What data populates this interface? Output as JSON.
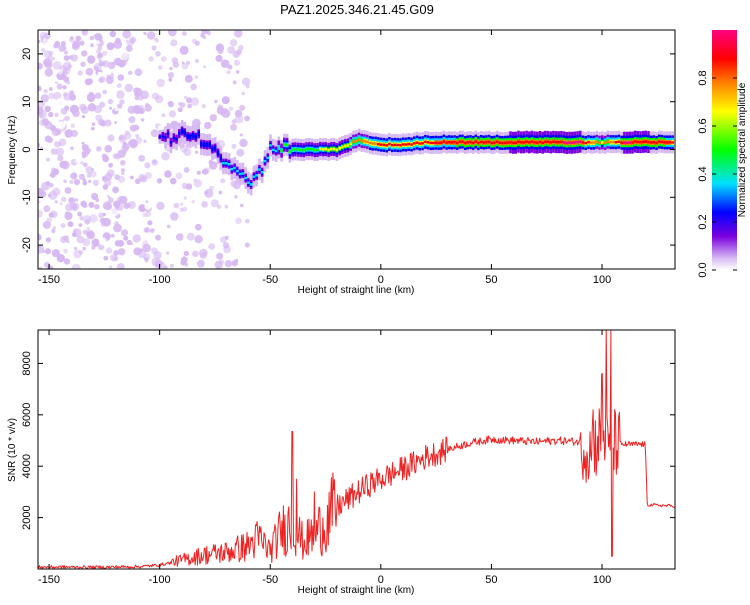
{
  "title": "PAZ1.2025.346.21.45.G09",
  "spectrogram": {
    "type": "heatmap",
    "xlabel": "Height of straight line (km)",
    "ylabel": "Frequency (Hz)",
    "xlim": [
      -155,
      133
    ],
    "ylim": [
      -25,
      25
    ],
    "xticks": [
      -150,
      -100,
      -50,
      0,
      50,
      100
    ],
    "yticks": [
      -20,
      -10,
      0,
      10,
      20
    ],
    "colorbar": {
      "label": "Normalized spectral amplitude",
      "range": [
        0,
        1
      ],
      "ticks": [
        "0.0",
        "0.2",
        "0.4",
        "0.6",
        "0.8"
      ],
      "tick_values": [
        0,
        0.2,
        0.4,
        0.6,
        0.8
      ],
      "colormap": [
        "#ffffff",
        "#d6b8f2",
        "#7b00e0",
        "#0000ff",
        "#00e0ff",
        "#00ff00",
        "#ffff00",
        "#ff8000",
        "#ff0000",
        "#ff0080"
      ]
    },
    "scatter_region": {
      "x_range": [
        -155,
        -60
      ],
      "amplitude": "low"
    },
    "ridge": [
      {
        "x": -100,
        "y": 2,
        "amp": 0.3
      },
      {
        "x": -90,
        "y": 3,
        "amp": 0.35
      },
      {
        "x": -80,
        "y": 2,
        "amp": 0.35
      },
      {
        "x": -70,
        "y": -3,
        "amp": 0.4
      },
      {
        "x": -60,
        "y": -7,
        "amp": 0.45
      },
      {
        "x": -55,
        "y": -5,
        "amp": 0.4
      },
      {
        "x": -50,
        "y": 0,
        "amp": 0.45
      },
      {
        "x": -40,
        "y": 0,
        "amp": 0.55
      },
      {
        "x": -30,
        "y": 0,
        "amp": 0.6
      },
      {
        "x": -20,
        "y": 0,
        "amp": 0.65
      },
      {
        "x": -10,
        "y": 2,
        "amp": 0.75
      },
      {
        "x": 0,
        "y": 1,
        "amp": 0.85
      },
      {
        "x": 10,
        "y": 1,
        "amp": 0.85
      },
      {
        "x": 20,
        "y": 1.5,
        "amp": 0.9
      },
      {
        "x": 50,
        "y": 1.5,
        "amp": 0.92
      },
      {
        "x": 90,
        "y": 1.5,
        "amp": 0.95
      },
      {
        "x": 100,
        "y": 1.5,
        "amp": 0.7
      },
      {
        "x": 110,
        "y": 1.5,
        "amp": 0.95
      },
      {
        "x": 133,
        "y": 1.5,
        "amp": 0.9
      }
    ]
  },
  "snr": {
    "type": "line",
    "xlabel": "Height of straight line (km)",
    "ylabel": "SNR (10 * v/v)",
    "xlim": [
      -155,
      133
    ],
    "ylim": [
      0,
      9300
    ],
    "xticks": [
      -150,
      -100,
      -50,
      0,
      50,
      100
    ],
    "yticks": [
      2000,
      4000,
      6000,
      8000
    ],
    "color": "#ee2222",
    "series": [
      {
        "x": -155,
        "y": 80
      },
      {
        "x": -130,
        "y": 70
      },
      {
        "x": -110,
        "y": 90
      },
      {
        "x": -100,
        "y": 150
      },
      {
        "x": -90,
        "y": 350
      },
      {
        "x": -80,
        "y": 550
      },
      {
        "x": -70,
        "y": 650
      },
      {
        "x": -60,
        "y": 900
      },
      {
        "x": -55,
        "y": 1200
      },
      {
        "x": -50,
        "y": 700
      },
      {
        "x": -45,
        "y": 1500
      },
      {
        "x": -40,
        "y": 1800
      },
      {
        "x": -35,
        "y": 1000
      },
      {
        "x": -30,
        "y": 1400
      },
      {
        "x": -25,
        "y": 1800
      },
      {
        "x": -20,
        "y": 2400
      },
      {
        "x": -15,
        "y": 2700
      },
      {
        "x": -10,
        "y": 3000
      },
      {
        "x": -5,
        "y": 3300
      },
      {
        "x": 0,
        "y": 3500
      },
      {
        "x": 5,
        "y": 3700
      },
      {
        "x": 10,
        "y": 3900
      },
      {
        "x": 15,
        "y": 4100
      },
      {
        "x": 20,
        "y": 4350
      },
      {
        "x": 30,
        "y": 4650
      },
      {
        "x": 40,
        "y": 4900
      },
      {
        "x": 50,
        "y": 5050
      },
      {
        "x": 60,
        "y": 5000
      },
      {
        "x": 70,
        "y": 4950
      },
      {
        "x": 80,
        "y": 5000
      },
      {
        "x": 90,
        "y": 4950
      },
      {
        "x": 95,
        "y": 4600
      },
      {
        "x": 100,
        "y": 5200
      },
      {
        "x": 103,
        "y": 4500
      },
      {
        "x": 106,
        "y": 4900
      },
      {
        "x": 110,
        "y": 4850
      },
      {
        "x": 119.5,
        "y": 4850
      },
      {
        "x": 120.5,
        "y": 2500
      },
      {
        "x": 133,
        "y": 2450
      }
    ],
    "spikes": [
      {
        "x": -40,
        "y": 5350
      },
      {
        "x": -38,
        "y": 3500
      },
      {
        "x": -30,
        "y": 3000
      },
      {
        "x": 96,
        "y": 6200
      },
      {
        "x": 100,
        "y": 7600
      },
      {
        "x": 102,
        "y": 9300
      },
      {
        "x": 104,
        "y": 9300
      },
      {
        "x": 104.5,
        "y": 500
      }
    ]
  }
}
